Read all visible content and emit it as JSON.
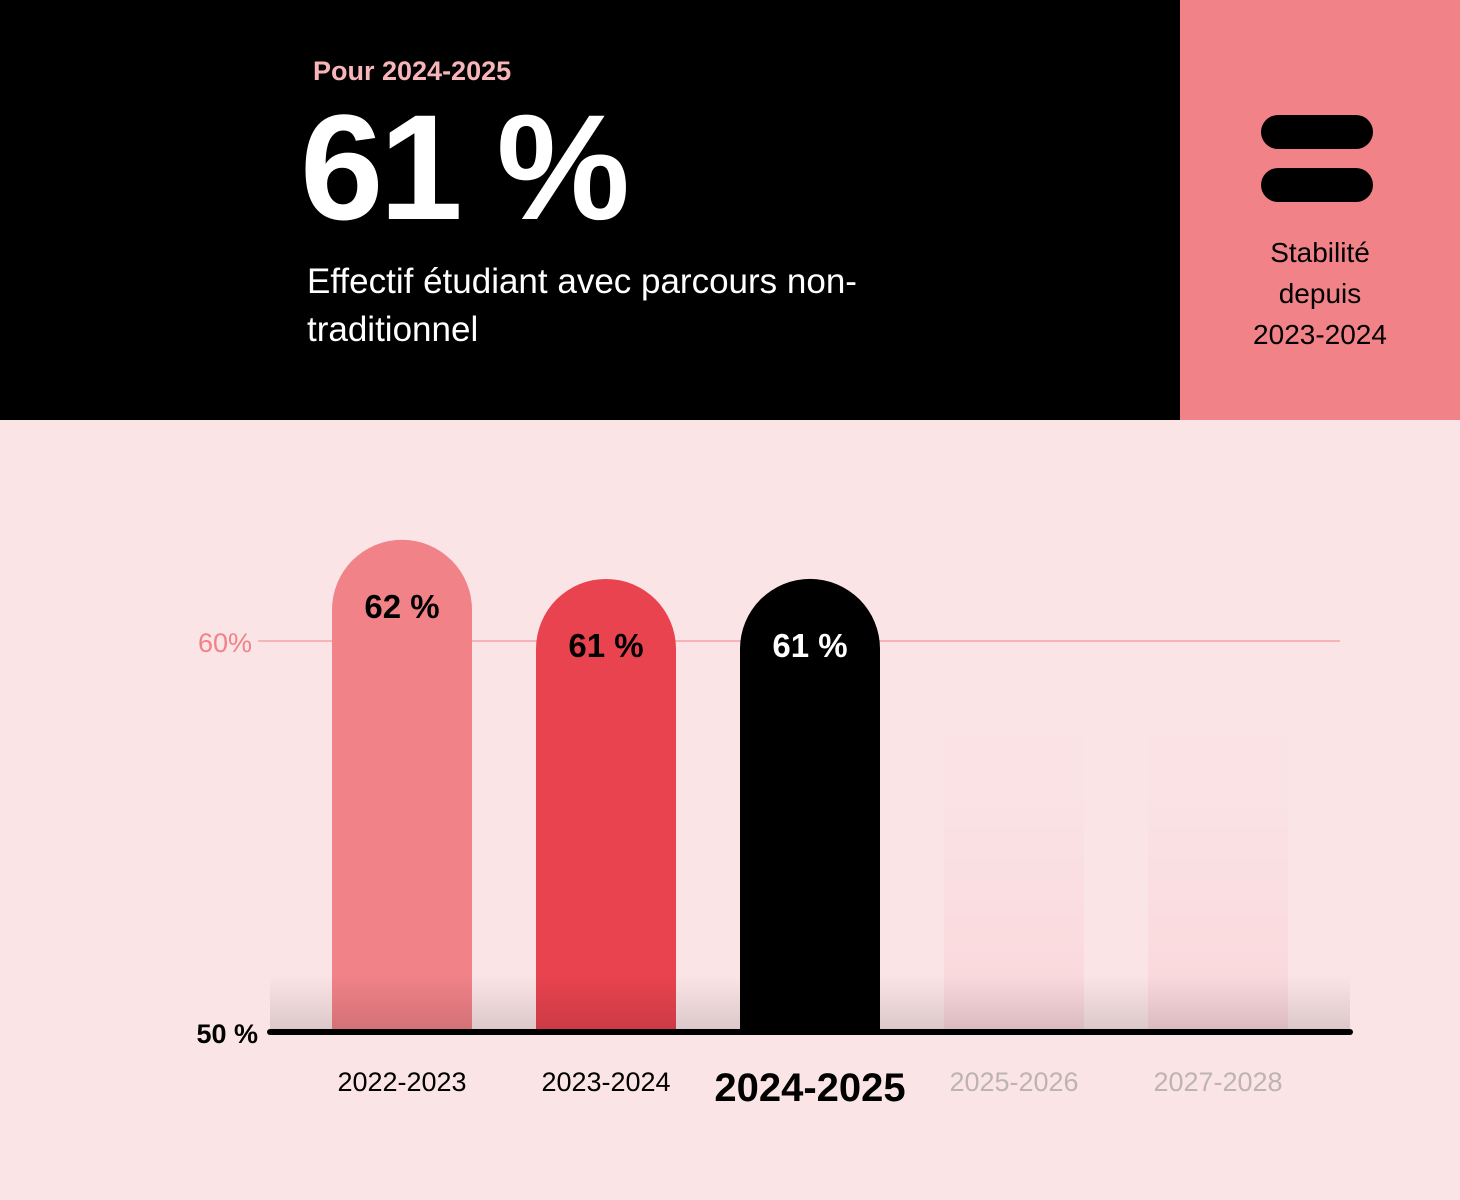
{
  "header": {
    "period_label": "Pour 2024-2025",
    "headline_value": "61 %",
    "description": "Effectif étudiant avec parcours non-traditionnel"
  },
  "side_panel": {
    "icon": "equals-icon",
    "text_lines": [
      "Stabilité",
      "depuis",
      "2023-2024"
    ]
  },
  "colors": {
    "dark": "#000000",
    "pink": "#f08288",
    "red": "#e8434f",
    "background": "#fbe4e6",
    "reference_line": "#f5a3a8"
  },
  "chart_data": {
    "type": "bar",
    "categories": [
      "2022-2023",
      "2023-2024",
      "2024-2025",
      "2025-2026",
      "2027-2028"
    ],
    "values": [
      62,
      61,
      61,
      null,
      null
    ],
    "data_labels": [
      "62 %",
      "61 %",
      "61 %",
      "",
      ""
    ],
    "bar_colors": [
      "#f08288",
      "#e8434f",
      "#000000",
      "#fbdde0",
      "#fbdde0"
    ],
    "highlight_category": "2024-2025",
    "y_tick_labels": [
      {
        "value": 50,
        "label": "50 %"
      },
      {
        "value": 60,
        "label": "60%"
      }
    ],
    "ylim": [
      50,
      62
    ],
    "reference_line": 60,
    "grid": false
  }
}
